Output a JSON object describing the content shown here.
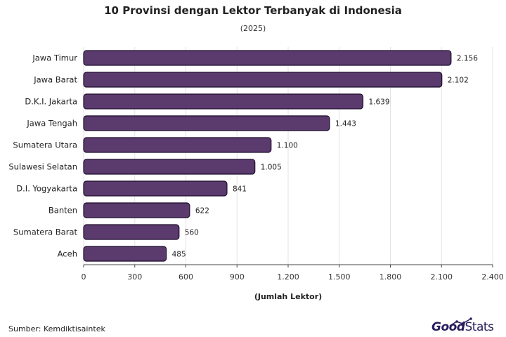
{
  "title": "10 Provinsi dengan Lektor Terbanyak di Indonesia",
  "subtitle": "(2025)",
  "source": "Sumber: Kemdiktisaintek",
  "brand": {
    "part1": "Good",
    "part2": "Stats"
  },
  "colors": {
    "bar_fill": "#5b3a6e",
    "bar_stroke": "#1e0f2c",
    "grid": "#e3e3e3",
    "axis": "#444444",
    "brand": "#2a1d5c"
  },
  "chart_data": {
    "type": "bar",
    "orientation": "horizontal",
    "categories": [
      "Jawa Timur",
      "Jawa Barat",
      "D.K.I. Jakarta",
      "Jawa Tengah",
      "Sumatera Utara",
      "Sulawesi Selatan",
      "D.I. Yogyakarta",
      "Banten",
      "Sumatera Barat",
      "Aceh"
    ],
    "values": [
      2156,
      2102,
      1639,
      1443,
      1100,
      1005,
      841,
      622,
      560,
      485
    ],
    "value_labels": [
      "2.156",
      "2.102",
      "1.639",
      "1.443",
      "1.100",
      "1.005",
      "841",
      "622",
      "560",
      "485"
    ],
    "xlabel": "(Jumlah Lektor)",
    "ylabel": "",
    "xlim": [
      0,
      2400
    ],
    "xticks": [
      0,
      300,
      600,
      900,
      1200,
      1500,
      1800,
      2100,
      2400
    ],
    "xtick_labels": [
      "0",
      "300",
      "600",
      "900",
      "1.200",
      "1.500",
      "1.800",
      "2.100",
      "2.400"
    ],
    "grid": "vertical",
    "legend": "none"
  }
}
